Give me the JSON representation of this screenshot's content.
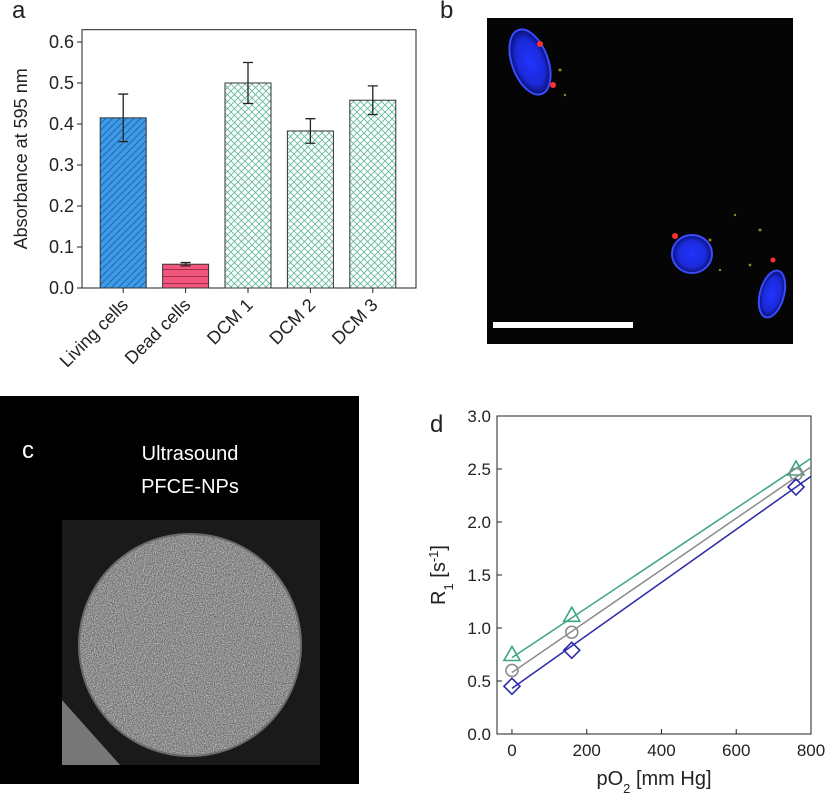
{
  "chart_data": [
    {
      "type": "bar",
      "panel": "a",
      "ylabel": "Absorbance at 595 nm",
      "categories": [
        "Living cells",
        "Dead cells",
        "DCM 1",
        "DCM 2",
        "DCM 3"
      ],
      "values": [
        0.415,
        0.058,
        0.5,
        0.383,
        0.458
      ],
      "errors": [
        0.058,
        0.004,
        0.05,
        0.03,
        0.035
      ],
      "colors": [
        "#3d9be9",
        "#f2567c",
        "#ffffff",
        "#ffffff",
        "#ffffff"
      ],
      "hatch_colors": [
        "#1f5f9e",
        "#8a2440",
        "#5fb89a",
        "#5fb89a",
        "#5fb89a"
      ],
      "hatches": [
        "diagonal",
        "horizontal",
        "cross",
        "cross",
        "cross"
      ],
      "ylim": [
        0,
        0.63
      ],
      "yticks": [
        {
          "value": 0,
          "label": "0.0"
        },
        0.1,
        0.2,
        0.3,
        0.4,
        0.5,
        0.6
      ]
    },
    {
      "type": "scatter",
      "panel": "d",
      "xlabel": [
        "pO",
        "2",
        " [mm Hg]"
      ],
      "ylabel": [
        "R",
        "1",
        " [s",
        "-1",
        "]"
      ],
      "x": [
        0,
        160,
        760
      ],
      "fit_x": [
        0,
        800
      ],
      "series": [
        {
          "marker": "triangle",
          "color": "#3aa585",
          "values": [
            0.75,
            1.12,
            2.5
          ],
          "fit": [
            0.72,
            2.6
          ]
        },
        {
          "marker": "circle",
          "color": "#8c8c8c",
          "values": [
            0.6,
            0.96,
            2.45
          ],
          "fit": [
            0.58,
            2.52
          ]
        },
        {
          "marker": "diamond",
          "color": "#2a2aa8",
          "values": [
            0.45,
            0.79,
            2.33
          ],
          "fit": [
            0.43,
            2.43
          ]
        }
      ],
      "xlim": [
        -40,
        800
      ],
      "xticks": [
        0,
        200,
        400,
        600,
        800
      ],
      "ylim": [
        0,
        3
      ],
      "yticks": [
        {
          "value": 0,
          "label": "0.0"
        },
        0.5,
        {
          "value": 1,
          "label": "1.0"
        },
        1.5,
        {
          "value": 2,
          "label": "2.0"
        },
        2.5,
        {
          "value": 3,
          "label": "3.0"
        }
      ]
    }
  ],
  "images": [
    {
      "panel": "b"
    },
    {
      "panel": "c",
      "caption": [
        "Ultrasound",
        "PFCE-NPs"
      ]
    }
  ]
}
